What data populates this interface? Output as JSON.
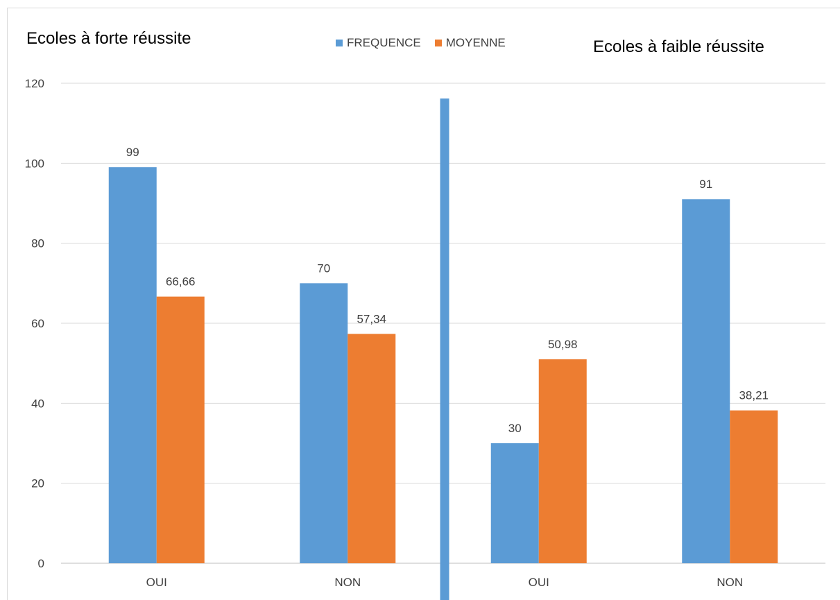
{
  "chart_data": {
    "type": "bar",
    "left_panel_label": "Ecoles à forte réussite",
    "right_panel_label": "Ecoles à faible réussite",
    "categories": [
      "OUI",
      "NON",
      "OUI",
      "NON"
    ],
    "series": [
      {
        "name": "FREQUENCE",
        "color": "#5b9bd5",
        "values": [
          99,
          70,
          30,
          91
        ],
        "labels": [
          "99",
          "70",
          "30",
          "91"
        ]
      },
      {
        "name": "MOYENNE",
        "color": "#ed7d31",
        "values": [
          66.66,
          57.34,
          50.98,
          38.21
        ],
        "labels": [
          "66,66",
          "57,34",
          "50,98",
          "38,21"
        ]
      }
    ],
    "y_ticks": [
      "0",
      "20",
      "40",
      "60",
      "80",
      "100",
      "120"
    ],
    "ylim": [
      0,
      120
    ],
    "grid": true,
    "legend_position": "top-center",
    "divider_color": "#5b9bd5"
  }
}
